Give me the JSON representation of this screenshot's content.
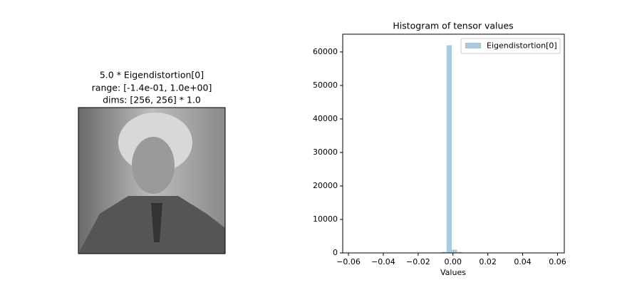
{
  "chart_data": [
    {
      "type": "image",
      "title": [
        "5.0 * Eigendistortion[0]",
        "range: [-1.4e-01, 1.0e+00]",
        "dims: [256, 256] * 1.0"
      ]
    },
    {
      "type": "histogram",
      "title": "Histogram of tensor values",
      "xlabel": "Values",
      "bins": [
        -0.0607,
        -0.0577,
        -0.0547,
        -0.0517,
        -0.0487,
        -0.0457,
        -0.0427,
        -0.0397,
        -0.0367,
        -0.0337,
        -0.0307,
        -0.0277,
        -0.0247,
        -0.0217,
        -0.0187,
        -0.0157,
        -0.0127,
        -0.0097,
        -0.0067,
        -0.0037,
        -0.0007,
        0.0023,
        0.0053,
        0.0083,
        0.0113,
        0.0143,
        0.0173,
        0.0203,
        0.0233,
        0.0263,
        0.0293,
        0.0323,
        0.0353,
        0.0383,
        0.0413,
        0.0443,
        0.0473,
        0.0503,
        0.0533,
        0.0563,
        0.0593
      ],
      "series": [
        {
          "name": "Eigendistortion[0]",
          "color": "#a6cbe0",
          "values": [
            0,
            0,
            0,
            0,
            0,
            0,
            0,
            0,
            0,
            0,
            0,
            0,
            0,
            0,
            0,
            0,
            0,
            50,
            300,
            62000,
            1000,
            300,
            50,
            0,
            0,
            0,
            0,
            0,
            0,
            0,
            0,
            0,
            0,
            0,
            0,
            0,
            0,
            0,
            0,
            0
          ]
        }
      ],
      "xlim": [
        -0.0633,
        0.0639
      ],
      "ylim": [
        0,
        65300
      ],
      "xticks": [
        {
          "value": -0.06,
          "label": "−0.06"
        },
        {
          "value": -0.04,
          "label": "−0.04"
        },
        {
          "value": -0.02,
          "label": "−0.02"
        },
        {
          "value": 0,
          "label": "0.00"
        },
        {
          "value": 0.02,
          "label": "0.02"
        },
        {
          "value": 0.04,
          "label": "0.04"
        },
        {
          "value": 0.06,
          "label": "0.06"
        }
      ],
      "yticks": [
        0,
        10000,
        20000,
        30000,
        40000,
        50000,
        60000
      ],
      "legend": "upper right"
    }
  ]
}
